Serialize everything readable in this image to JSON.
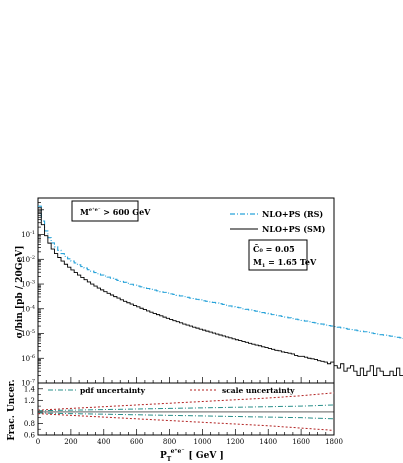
{
  "chart_data": [
    {
      "type": "line",
      "panel": "main",
      "ylabel": "σ/bin [pb / 20GeV]",
      "yscale": "log",
      "xlim": [
        0,
        1800
      ],
      "ylim": [
        1e-07,
        3
      ],
      "xticks": [
        0,
        200,
        400,
        600,
        800,
        1000,
        1200,
        1400,
        1600,
        1800
      ],
      "yticks": [
        {
          "value": 1e-07,
          "base": "10",
          "exp": "-7"
        },
        {
          "value": 1e-06,
          "base": "10",
          "exp": "-6"
        },
        {
          "value": 1e-05,
          "base": "10",
          "exp": "-5"
        },
        {
          "value": 0.0001,
          "base": "10",
          "exp": "-4"
        },
        {
          "value": 0.001,
          "base": "10",
          "exp": "-3"
        },
        {
          "value": 0.01,
          "base": "10",
          "exp": "-2"
        },
        {
          "value": 0.1,
          "base": "10",
          "exp": "-1"
        }
      ],
      "cut_box": {
        "text": "M",
        "sup": "e⁺e⁻",
        "rest": " > 600 GeV"
      },
      "param_box": {
        "line1": "C̄₀ = 0.05",
        "line2_main": "M",
        "line2_sub": "1",
        "line2_rest": " = 1.65 TeV"
      },
      "series": [
        {
          "name": "NLO+PS (RS)",
          "color": "#29a3d9",
          "style": "dashdot",
          "bin_width": 20,
          "values": [
            1.4,
            0.35,
            0.14,
            0.075,
            0.046,
            0.032,
            0.023,
            0.017,
            0.013,
            0.0105,
            0.0085,
            0.0071,
            0.006,
            0.0051,
            0.0044,
            0.0038,
            0.0033,
            0.0029,
            0.0026,
            0.0023,
            0.0021,
            0.0019,
            0.0017,
            0.00155,
            0.0014,
            0.00128,
            0.00117,
            0.00107,
            0.00098,
            0.0009,
            0.00083,
            0.00077,
            0.00071,
            0.00066,
            0.00061,
            0.00057,
            0.00053,
            0.00049,
            0.00046,
            0.00043,
            0.0004,
            0.00038,
            0.00035,
            0.00033,
            0.00031,
            0.00029,
            0.00027,
            0.00026,
            0.00024,
            0.00023,
            0.00021,
            0.0002,
            0.00019,
            0.00018,
            0.00017,
            0.00016,
            0.00015,
            0.00014,
            0.00013,
            0.00012,
            0.000115,
            0.00011,
            0.0001,
            9.5e-05,
            9e-05,
            8.5e-05,
            8e-05,
            7.5e-05,
            7e-05,
            6.6e-05,
            6.2e-05,
            5.8e-05,
            5.5e-05,
            5.2e-05,
            4.9e-05,
            4.6e-05,
            4.3e-05,
            4e-05,
            3.8e-05,
            3.6e-05,
            3.4e-05,
            3.2e-05,
            3e-05,
            2.8e-05,
            2.7e-05,
            2.5e-05,
            2.4e-05,
            2.2e-05,
            2.1e-05,
            2e-05,
            1.9e-05,
            1.8e-05,
            1.7e-05,
            1.6e-05,
            1.5e-05,
            1.45e-05,
            1.38e-05,
            1.3e-05,
            1.24e-05,
            1.18e-05,
            1.12e-05,
            1.05e-05,
            1e-05,
            9.5e-06,
            9e-06,
            8.6e-06,
            8.2e-06,
            7.8e-06,
            7.4e-06,
            7e-06,
            6.7e-06,
            6.3e-06,
            6e-06,
            5.7e-06,
            5.4e-06,
            5.2e-06,
            4.9e-06,
            4.7e-06,
            4.4e-06,
            4.2e-06,
            4e-06,
            3.8e-06,
            3.6e-06,
            3.4e-06,
            3.2e-06,
            3e-06,
            2.8e-06,
            2.6e-06,
            2.4e-06,
            2.2e-06,
            2e-06,
            1.9e-06,
            1.8e-06,
            1.6e-06,
            1.5e-06,
            1.3e-06,
            1.2e-06,
            1.1e-06,
            1e-06,
            9.5e-07,
            9e-07,
            8e-07,
            8e-07,
            7e-07,
            6e-07,
            7e-07,
            5e-07,
            6e-07,
            4e-07,
            5e-07,
            4e-07,
            3e-07,
            4e-07,
            3e-07,
            2e-07,
            3e-07,
            2e-07,
            2e-07,
            3e-07,
            2e-07,
            3e-07,
            2e-07,
            2e-07,
            2e-07,
            2e-07,
            3e-07,
            2e-07,
            2e-07,
            2e-07,
            2e-07,
            3e-07,
            2e-07,
            2e-07,
            2e-07,
            2e-07,
            2e-07,
            3e-07,
            2e-07,
            2e-07,
            2e-07,
            2e-07,
            2e-07,
            3e-07,
            2e-07,
            2e-07,
            2e-07,
            1e-07,
            2e-07,
            2e-07
          ]
        },
        {
          "name": "NLO+PS (SM)",
          "color": "#000000",
          "style": "solid",
          "bin_width": 20,
          "values": [
            1.2,
            0.25,
            0.09,
            0.045,
            0.026,
            0.017,
            0.0118,
            0.0085,
            0.0063,
            0.0048,
            0.0037,
            0.0029,
            0.0023,
            0.00185,
            0.0015,
            0.00122,
            0.001,
            0.00083,
            0.00069,
            0.00058,
            0.00049,
            0.00042,
            0.00036,
            0.00031,
            0.00027,
            0.00023,
            0.0002,
            0.000175,
            0.000155,
            0.000135,
            0.00012,
            0.000105,
            9.3e-05,
            8.2e-05,
            7.3e-05,
            6.5e-05,
            5.8e-05,
            5.2e-05,
            4.6e-05,
            4.1e-05,
            3.7e-05,
            3.3e-05,
            3e-05,
            2.7e-05,
            2.4e-05,
            2.2e-05,
            2e-05,
            1.8e-05,
            1.65e-05,
            1.5e-05,
            1.37e-05,
            1.25e-05,
            1.14e-05,
            1.04e-05,
            9.5e-06,
            8.7e-06,
            8e-06,
            7.3e-06,
            6.7e-06,
            6.1e-06,
            5.6e-06,
            5.2e-06,
            4.8e-06,
            4.4e-06,
            4e-06,
            3.7e-06,
            3.4e-06,
            3.2e-06,
            2.9e-06,
            2.7e-06,
            2.5e-06,
            2.3e-06,
            2.1e-06,
            2e-06,
            1.8e-06,
            1.7e-06,
            1.6e-06,
            1.5e-06,
            1.3e-06,
            1.2e-06,
            1.2e-06,
            1.1e-06,
            1e-06,
            9.5e-07,
            9e-07,
            8e-07,
            7.5e-07,
            7e-07,
            6e-07,
            7e-07,
            5e-07,
            4e-07,
            6e-07,
            3e-07,
            4e-07,
            5e-07,
            3e-07,
            2e-07,
            4e-07,
            2e-07,
            3e-07,
            5e-07,
            2e-07,
            4e-07,
            3e-07,
            2e-07,
            2e-07,
            3e-07,
            2e-07,
            4e-07,
            2e-07,
            2e-07,
            3e-07,
            2e-07,
            2e-07,
            2e-07,
            2e-07,
            3e-07,
            2e-07,
            2e-07,
            2e-07,
            2e-07,
            1e-07,
            2e-07,
            1e-07,
            1e-07,
            2e-07,
            1e-07,
            1e-07,
            1e-07,
            1e-07,
            1e-07,
            2e-07,
            1e-07,
            1e-07,
            2e-07,
            1e-07,
            1e-07,
            1e-07,
            2e-07,
            2e-07,
            1e-07,
            1e-07,
            1e-07,
            1e-07,
            2e-07,
            1e-07,
            1e-07,
            1e-07,
            1e-07,
            1e-07,
            1e-07,
            1e-07,
            1e-07,
            1e-07,
            1e-07,
            1e-07,
            2e-07,
            1e-07,
            1e-07,
            1e-07,
            1e-07,
            1e-07,
            1e-07,
            1e-07,
            1e-07,
            1e-07,
            2e-07,
            1e-07,
            1e-07,
            1e-07,
            1e-07,
            1e-07,
            1e-07,
            1e-07,
            1e-07,
            1e-07,
            1e-07,
            1e-07,
            1e-07,
            1e-07,
            1e-07,
            1e-07,
            1e-07,
            1e-07,
            1e-07,
            1e-07,
            1e-07,
            1e-07,
            1e-07
          ]
        }
      ]
    },
    {
      "type": "line",
      "panel": "ratio",
      "ylabel": "Frac. Uncer.",
      "xlabel_main": "P",
      "xlabel_sub": "T",
      "xlabel_sup": "e⁺e⁻",
      "xlabel_unit": "[ GeV ]",
      "xlim": [
        0,
        1800
      ],
      "ylim": [
        0.6,
        1.5
      ],
      "xticks": [
        0,
        200,
        400,
        600,
        800,
        1000,
        1200,
        1400,
        1600,
        1800
      ],
      "yticks": [
        0.6,
        0.8,
        1,
        1.2,
        1.4
      ],
      "series": [
        {
          "name": "pdf uncertainty",
          "color": "#2a8f8a",
          "style": "dashdot",
          "x": [
            0,
            200,
            400,
            600,
            800,
            1000,
            1200,
            1400,
            1600,
            1800
          ],
          "upper": [
            1.02,
            1.03,
            1.04,
            1.05,
            1.06,
            1.07,
            1.08,
            1.09,
            1.1,
            1.12
          ],
          "lower": [
            0.98,
            0.97,
            0.96,
            0.95,
            0.94,
            0.93,
            0.92,
            0.91,
            0.9,
            0.88
          ]
        },
        {
          "name": "scale uncertainty",
          "color": "#b22222",
          "style": "dashed",
          "x": [
            0,
            200,
            400,
            600,
            800,
            1000,
            1200,
            1400,
            1600,
            1800
          ],
          "upper": [
            1.03,
            1.06,
            1.09,
            1.12,
            1.15,
            1.18,
            1.21,
            1.24,
            1.28,
            1.33
          ],
          "lower": [
            0.97,
            0.94,
            0.91,
            0.88,
            0.85,
            0.82,
            0.79,
            0.76,
            0.72,
            0.68
          ]
        }
      ]
    }
  ]
}
